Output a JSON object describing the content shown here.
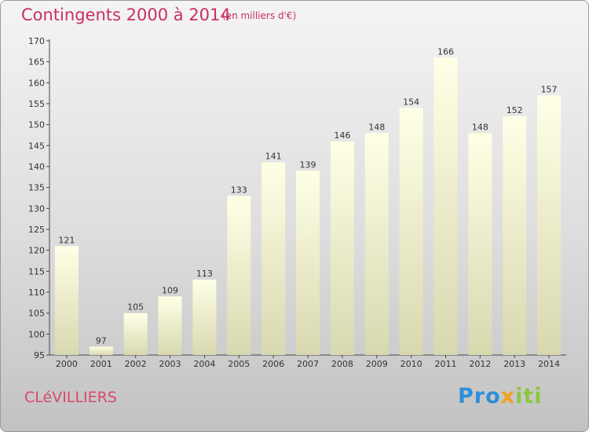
{
  "header": {
    "title": "Contingents 2000 à 2014",
    "subtitle": "(en milliers d'€)"
  },
  "commune": "CLéVILLIERS",
  "logo": {
    "text": "Proxiti"
  },
  "colors": {
    "title": "#c8305f",
    "bar_top": "#ffffe6",
    "bar_bottom": "#d8d8b0"
  },
  "chart_data": {
    "type": "bar",
    "title": "Contingents 2000 à 2014",
    "subtitle": "(en milliers d'€)",
    "xlabel": "",
    "ylabel": "",
    "categories": [
      "2000",
      "2001",
      "2002",
      "2003",
      "2004",
      "2005",
      "2006",
      "2007",
      "2008",
      "2009",
      "2010",
      "2011",
      "2012",
      "2013",
      "2014"
    ],
    "values": [
      121,
      97,
      105,
      109,
      113,
      133,
      141,
      139,
      146,
      148,
      154,
      166,
      148,
      152,
      157
    ],
    "ylim": [
      95,
      170
    ],
    "yticks": [
      95,
      100,
      105,
      110,
      115,
      120,
      125,
      130,
      135,
      140,
      145,
      150,
      155,
      160,
      165,
      170
    ],
    "grid": false,
    "data_labels": true
  }
}
